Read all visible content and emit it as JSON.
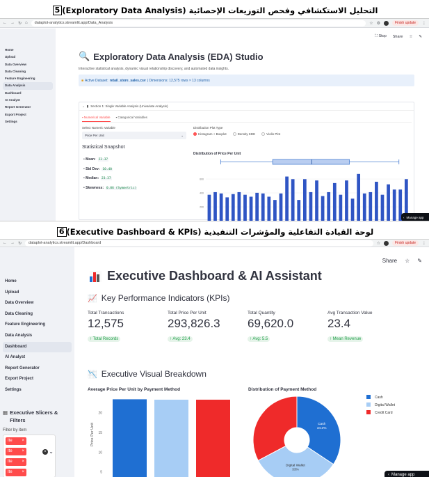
{
  "caption5": {
    "text": "التحليل الاستكشافي وفحص التوزيعات الإحصائية (Exploratory Data Analysis)",
    "num": "5"
  },
  "caption6": {
    "text": "لوحة القيادة التفاعلية والمؤشرات التنفيذية (Executive Dashboard & KPIs)",
    "num": "6"
  },
  "browser1": {
    "url": "dataplot-analytics.streamlit.app/Data_Analysis",
    "finish": "Finish update"
  },
  "browser2": {
    "url": "dataplot-analytics.streamlit.app/Dashboard",
    "finish": "Finish update"
  },
  "nav": [
    "Home",
    "Upload",
    "Data Overview",
    "Data Cleaning",
    "Feature Engineering",
    "Data Analysis",
    "Dashboard",
    "AI Analyst",
    "Report Generator",
    "Export Project",
    "Settings"
  ],
  "topbar": {
    "stop": "Stop",
    "share": "Share"
  },
  "eda": {
    "title": "Exploratory Data Analysis (EDA) Studio",
    "subtitle": "Interactive statistical analysis, dynamic visual relationship discovery, and automated data insights.",
    "dataset_label": "Active Dataset:",
    "dataset_name": "retail_store_sales.csv",
    "dataset_dims": "| Dimensions: 12,575 rows × 13 columns",
    "section": "Section 1: Single Variable Analysis (Univariate Analysis)",
    "tab_numerical": "Numerical Variable",
    "tab_categorical": "Categorical Variables",
    "select_label": "Select Numeric Variable",
    "select_value": "Price Per Unit",
    "plot_type_label": "Distribution Plot Type",
    "plot_types": [
      "Histogram + Boxplot",
      "Density KDE",
      "Violin Plot"
    ],
    "snapshot_title": "Statistical Snapshot",
    "stats": [
      {
        "label": "Mean:",
        "value": "23.37"
      },
      {
        "label": "Std Dev:",
        "value": "10.40"
      },
      {
        "label": "Median:",
        "value": "23.37"
      },
      {
        "label": "Skewness:",
        "value": "0.06 (Symmetric)"
      }
    ],
    "chart_title": "Distribution of Price Per Unit",
    "manage": "Manage app"
  },
  "dash": {
    "title": "Executive Dashboard & AI Assistant",
    "kpi_title": "Key Performance Indicators (KPIs)",
    "kpis": [
      {
        "label": "Total Transactions",
        "value": "12,575",
        "delta": "Total Records"
      },
      {
        "label": "Total Price Per Unit",
        "value": "293,826.3",
        "delta": "Avg: 23.4"
      },
      {
        "label": "Total Quantity",
        "value": "69,620.0",
        "delta": "Avg: 5.5"
      },
      {
        "label": "Avg Transaction Value",
        "value": "23.4",
        "delta": "Mean Revenue"
      }
    ],
    "breakdown_title": "Executive Visual Breakdown",
    "slicers_title": "Executive Slicers & Filters",
    "filter_label": "Filter by item",
    "pill_text": "Ite",
    "manage": "Manage app"
  },
  "chart_data": [
    {
      "type": "bar",
      "title": "Distribution of Price Per Unit",
      "xlabel": "",
      "ylabel": "",
      "series": [
        {
          "values": [
            40,
            44,
            42,
            36,
            41,
            44,
            40,
            37,
            43,
            42,
            37,
            32,
            42,
            68,
            64,
            32,
            64,
            44,
            62,
            38,
            44,
            58,
            40,
            62,
            34,
            72,
            42,
            44,
            60,
            40,
            56,
            48,
            48,
            64
          ]
        }
      ],
      "boxplot": {
        "min": 5.0,
        "q1": 15.5,
        "median": 23.4,
        "q3": 31.0,
        "max": 41.0
      },
      "xlim": [
        2,
        43
      ],
      "ylim": [
        0,
        75
      ],
      "y_ticks": [
        "600",
        "400",
        "200"
      ]
    },
    {
      "type": "bar",
      "title": "Average Price Per Unit by Payment Method",
      "categories": [
        "Cash",
        "Digital Wallet",
        "Credit Card"
      ],
      "values": [
        23.4,
        23.3,
        23.3
      ],
      "colors": [
        "#1f6fd2",
        "#a7cdf5",
        "#ef2a2a"
      ],
      "ylabel": "Price Per Unit",
      "ylim": [
        0,
        24
      ],
      "y_ticks": [
        20,
        15,
        10,
        5
      ]
    },
    {
      "type": "pie",
      "title": "Distribution of Payment Method",
      "labels": [
        "Cash",
        "Digital Wallet",
        "Credit Card"
      ],
      "values": [
        34.3,
        33.0,
        32.7
      ],
      "slice_labels": [
        "Cash\n34.3%",
        "Digital Wallet\n33%",
        ""
      ],
      "colors": [
        "#1f6fd2",
        "#a7cdf5",
        "#ef2a2a"
      ],
      "hole": true
    }
  ]
}
